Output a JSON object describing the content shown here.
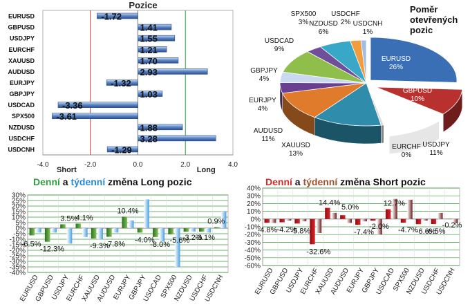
{
  "colors": {
    "bar_blue": "#5a84c4",
    "bar_blue_dark": "#2b4f8f",
    "short_line": "#c0392b",
    "long_line": "#2e9e3e",
    "green_title": "#2e9e3e",
    "blue_title": "#2a8ad6",
    "red_title": "#d62a2a",
    "brown_title": "#a0522d",
    "daily_green": "#3f8f2c",
    "weekly_blue": "#5aa9e6",
    "daily_red": "#c8151b",
    "weekly_maroon": "#6e1f1f"
  },
  "chart_data": [
    {
      "type": "bar",
      "orientation": "horizontal",
      "title": "Pozice",
      "categories": [
        "EURUSD",
        "GBPUSD",
        "USDJPY",
        "EURCHF",
        "XAUUSD",
        "AUDUSD",
        "EURJPY",
        "GBPJPY",
        "USDCAD",
        "SPX500",
        "NZDUSD",
        "USDCHF",
        "USDCNH"
      ],
      "values": [
        -1.72,
        1.41,
        1.55,
        1.21,
        1.7,
        2.93,
        -1.32,
        1.03,
        -3.36,
        -3.61,
        1.88,
        3.28,
        -1.29
      ],
      "value_labels": [
        "-1.72",
        "1.41",
        "1.55",
        "1.21",
        "1.70",
        "2.93",
        "-1.32",
        "1.03",
        "-3.36",
        "-3.61",
        "1.88",
        "3.28",
        "-1.29"
      ],
      "xlim": [
        -4.0,
        4.0
      ],
      "x_ticks": [
        "-4.0",
        "-2.0",
        "0.0",
        "2.0",
        "4.0"
      ],
      "ref_lines": [
        {
          "label": "Short",
          "x": -2.0
        },
        {
          "label": "Long",
          "x": 2.0
        }
      ]
    },
    {
      "type": "pie",
      "title_lines": [
        "Poměr",
        "otevřených",
        "pozic"
      ],
      "slices": [
        {
          "name": "EURUSD",
          "value": 26,
          "label": "26%",
          "color": "#3a6fb5"
        },
        {
          "name": "GBPUSD",
          "value": 10,
          "label": "10%",
          "color": "#b8312f"
        },
        {
          "name": "USDJPY",
          "value": 11,
          "label": "11%",
          "color": "#ffffff"
        },
        {
          "name": "EURCHF",
          "value": 0.5,
          "label": "0%",
          "color": "#d9d9d9"
        },
        {
          "name": "XAUUSD",
          "value": 13,
          "label": "13%",
          "color": "#2f8cab"
        },
        {
          "name": "AUDUSD",
          "value": 11,
          "label": "11%",
          "color": "#e07b2b"
        },
        {
          "name": "EURJPY",
          "value": 4,
          "label": "4%",
          "color": "#6b3f8f"
        },
        {
          "name": "GBPJPY",
          "value": 4,
          "label": "4%",
          "color": "#c9d9ef"
        },
        {
          "name": "USDCAD",
          "value": 9,
          "label": "9%",
          "color": "#8fbf4a"
        },
        {
          "name": "SPX500",
          "value": 3,
          "label": "3%",
          "color": "#6f4f9a"
        },
        {
          "name": "NZDUSD",
          "value": 6,
          "label": "6%",
          "color": "#39a7c7"
        },
        {
          "name": "USDCHF",
          "value": 2,
          "label": "2%",
          "color": "#f39c3d"
        },
        {
          "name": "USDCNH",
          "value": 1,
          "label": "1%",
          "color": "#9fbde6"
        }
      ]
    },
    {
      "type": "bar",
      "title_parts": [
        {
          "text": "Denní",
          "role": "daily"
        },
        {
          "text": " a ",
          "role": "plain"
        },
        {
          "text": "týdenní",
          "role": "weekly"
        },
        {
          "text": " změna Long pozic",
          "role": "plain"
        }
      ],
      "categories": [
        "EURUSD",
        "GBPUSD",
        "USDJPY",
        "EURCHF",
        "XAUUSD",
        "AUDUSD",
        "EURJPY",
        "GBPJPY",
        "USDCAD",
        "SPX500",
        "NZDUSD",
        "USDCHF",
        "USDCNH"
      ],
      "series": [
        {
          "role": "daily",
          "values": [
            -6.5,
            -12.3,
            3.5,
            4.1,
            -9.3,
            -7.8,
            10.4,
            -4.0,
            -8.0,
            -5.6,
            -3.2,
            -3.1,
            0.9
          ]
        },
        {
          "role": "weekly",
          "values": [
            -4,
            -4,
            -14,
            -8,
            -10,
            -4,
            7,
            26,
            -12,
            -35,
            -3,
            -4,
            15
          ]
        }
      ],
      "data_labels": [
        "-6.5%",
        "-12.3%",
        "3.5%",
        "4.1%",
        "-9.3%",
        "-7.8%",
        "10.4%",
        "-4.0%",
        "-8.0%",
        "-5.6%",
        "-3.2%",
        "-3.1%",
        "0.9%"
      ],
      "ylim": [
        -40,
        30
      ],
      "y_ticks": [
        "30%",
        "25%",
        "20%",
        "15%",
        "10%",
        "5%",
        "0%",
        "-5%",
        "-10%",
        "-15%",
        "-20%",
        "-25%",
        "-30%",
        "-35%",
        "-40%"
      ]
    },
    {
      "type": "bar",
      "title_parts": [
        {
          "text": "Denní",
          "role": "daily"
        },
        {
          "text": " a ",
          "role": "plain"
        },
        {
          "text": "týdenní",
          "role": "weekly"
        },
        {
          "text": " změna Short pozic",
          "role": "plain"
        }
      ],
      "categories": [
        "EURUSD",
        "GBPUSD",
        "USDJPY",
        "EURCHF",
        "XAUUSD",
        "AUDUSD",
        "EURJPY",
        "GBPJPY",
        "USDCAD",
        "SPX500",
        "NZDUSD",
        "USDCHF",
        "USDCNH"
      ],
      "series": [
        {
          "role": "daily",
          "values": [
            -4.8,
            -4.2,
            -5.8,
            -32.6,
            14.4,
            5.0,
            -7.4,
            -2.0,
            12.7,
            -4.7,
            -6.6,
            -6.5,
            -0.2
          ]
        },
        {
          "role": "weekly",
          "values": [
            -5,
            -2,
            -3,
            -18,
            8,
            -5,
            -3,
            -20,
            26,
            25,
            -2,
            8,
            -5
          ]
        }
      ],
      "data_labels": [
        "-4.8%",
        "-4.2%",
        "-5.8%",
        "-32.6%",
        "14.4%",
        "5.0%",
        "-7.4%",
        "-2.0%",
        "12.7%",
        "-4.7%",
        "-6.6%",
        "-6.5%",
        "-0.2%"
      ],
      "ylim": [
        -60,
        40
      ],
      "y_ticks": [
        "40%",
        "30%",
        "20%",
        "10%",
        "0%",
        "-10%",
        "-20%",
        "-30%",
        "-40%",
        "-50%",
        "-60%"
      ]
    }
  ]
}
